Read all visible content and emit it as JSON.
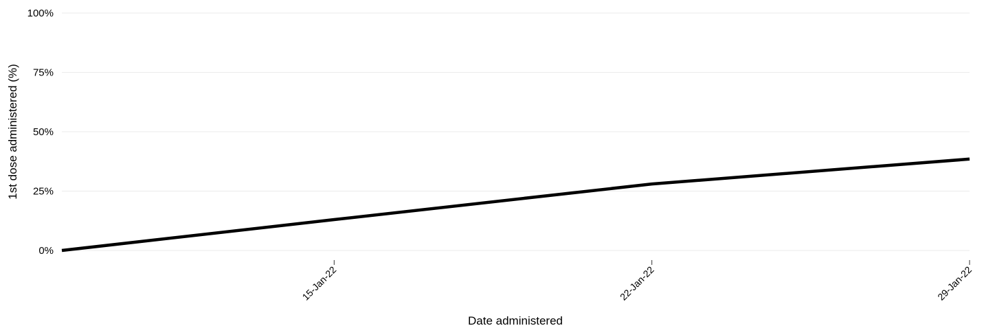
{
  "chart_data": {
    "type": "line",
    "x_label": "Date administered",
    "y_label": "1st dose administered (%)",
    "x": [
      "2022-01-09",
      "2022-01-15",
      "2022-01-22",
      "2022-01-29"
    ],
    "series": [
      {
        "name": "1st dose",
        "color": "#000000",
        "values": [
          0,
          13,
          28,
          38.5
        ]
      }
    ],
    "xlim": [
      "2022-01-09",
      "2022-01-29"
    ],
    "xticks": [
      {
        "value": "2022-01-15",
        "label": "15-Jan-22"
      },
      {
        "value": "2022-01-22",
        "label": "22-Jan-22"
      },
      {
        "value": "2022-01-29",
        "label": "29-Jan-22"
      }
    ],
    "ylim": [
      0,
      100
    ],
    "yticks": [
      {
        "value": 0,
        "label": "0%"
      },
      {
        "value": 25,
        "label": "25%"
      },
      {
        "value": 50,
        "label": "50%"
      },
      {
        "value": 75,
        "label": "75%"
      },
      {
        "value": 100,
        "label": "100%"
      }
    ],
    "grid": true
  }
}
